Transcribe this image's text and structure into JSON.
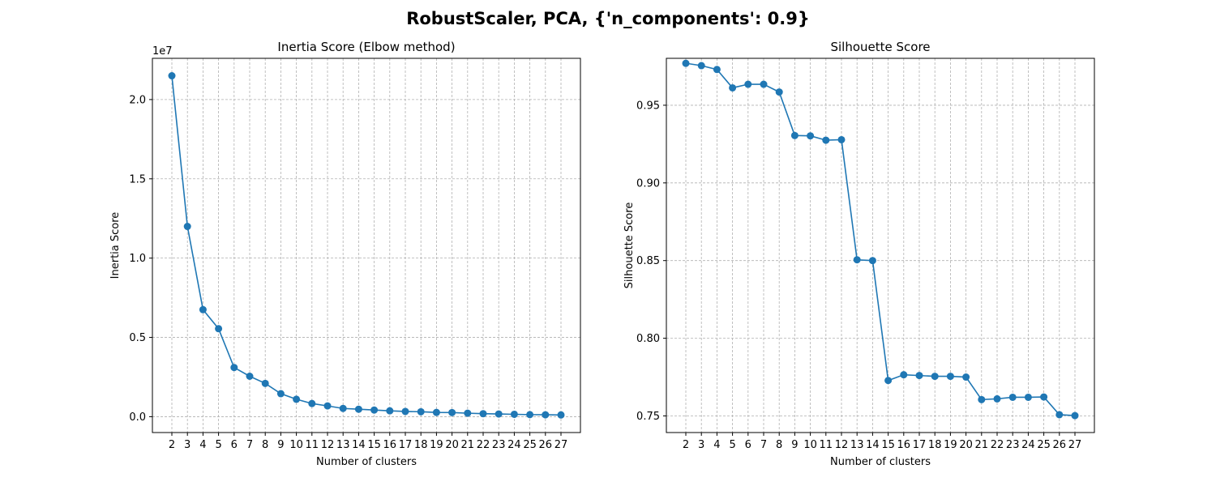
{
  "figure": {
    "suptitle": "RobustScaler, PCA, {'n_components': 0.9}"
  },
  "chart_data": [
    {
      "type": "line",
      "title": "Inertia Score (Elbow method)",
      "xlabel": "Number of clusters",
      "ylabel": "Inertia Score",
      "y_offset_label": "1e7",
      "grid": true,
      "marker": "circle",
      "color": "#1f77b4",
      "x": [
        2,
        3,
        4,
        5,
        6,
        7,
        8,
        9,
        10,
        11,
        12,
        13,
        14,
        15,
        16,
        17,
        18,
        19,
        20,
        21,
        22,
        23,
        24,
        25,
        26,
        27
      ],
      "y": [
        21500000,
        12000000,
        6750000,
        5550000,
        3100000,
        2550000,
        2100000,
        1450000,
        1100000,
        830000,
        680000,
        520000,
        470000,
        420000,
        370000,
        330000,
        310000,
        270000,
        260000,
        220000,
        190000,
        170000,
        150000,
        130000,
        120000,
        110000
      ],
      "xlim": [
        0.75,
        28.25
      ],
      "ylim": [
        -1000000,
        22600000
      ],
      "xticks": [
        2,
        3,
        4,
        5,
        6,
        7,
        8,
        9,
        10,
        11,
        12,
        13,
        14,
        15,
        16,
        17,
        18,
        19,
        20,
        21,
        22,
        23,
        24,
        25,
        26,
        27
      ],
      "yticks": [
        0,
        5000000,
        10000000,
        15000000,
        20000000
      ],
      "ytick_labels": [
        "0.0",
        "0.5",
        "1.0",
        "1.5",
        "2.0"
      ]
    },
    {
      "type": "line",
      "title": "Silhouette Score",
      "xlabel": "Number of clusters",
      "ylabel": "Silhouette Score",
      "grid": true,
      "marker": "circle",
      "color": "#1f77b4",
      "x": [
        2,
        3,
        4,
        5,
        6,
        7,
        8,
        9,
        10,
        11,
        12,
        13,
        14,
        15,
        16,
        17,
        18,
        19,
        20,
        21,
        22,
        23,
        24,
        25,
        26,
        27
      ],
      "y": [
        0.977,
        0.9755,
        0.973,
        0.9612,
        0.9635,
        0.9635,
        0.9585,
        0.9305,
        0.9303,
        0.9275,
        0.9278,
        0.8505,
        0.85,
        0.7728,
        0.7765,
        0.776,
        0.7755,
        0.7755,
        0.775,
        0.7605,
        0.761,
        0.762,
        0.762,
        0.7622,
        0.7508,
        0.7502
      ],
      "xlim": [
        0.75,
        28.25
      ],
      "ylim": [
        0.7393,
        0.9802
      ],
      "xticks": [
        2,
        3,
        4,
        5,
        6,
        7,
        8,
        9,
        10,
        11,
        12,
        13,
        14,
        15,
        16,
        17,
        18,
        19,
        20,
        21,
        22,
        23,
        24,
        25,
        26,
        27
      ],
      "yticks": [
        0.75,
        0.8,
        0.85,
        0.9,
        0.95
      ],
      "ytick_labels": [
        "0.75",
        "0.80",
        "0.85",
        "0.90",
        "0.95"
      ]
    }
  ]
}
